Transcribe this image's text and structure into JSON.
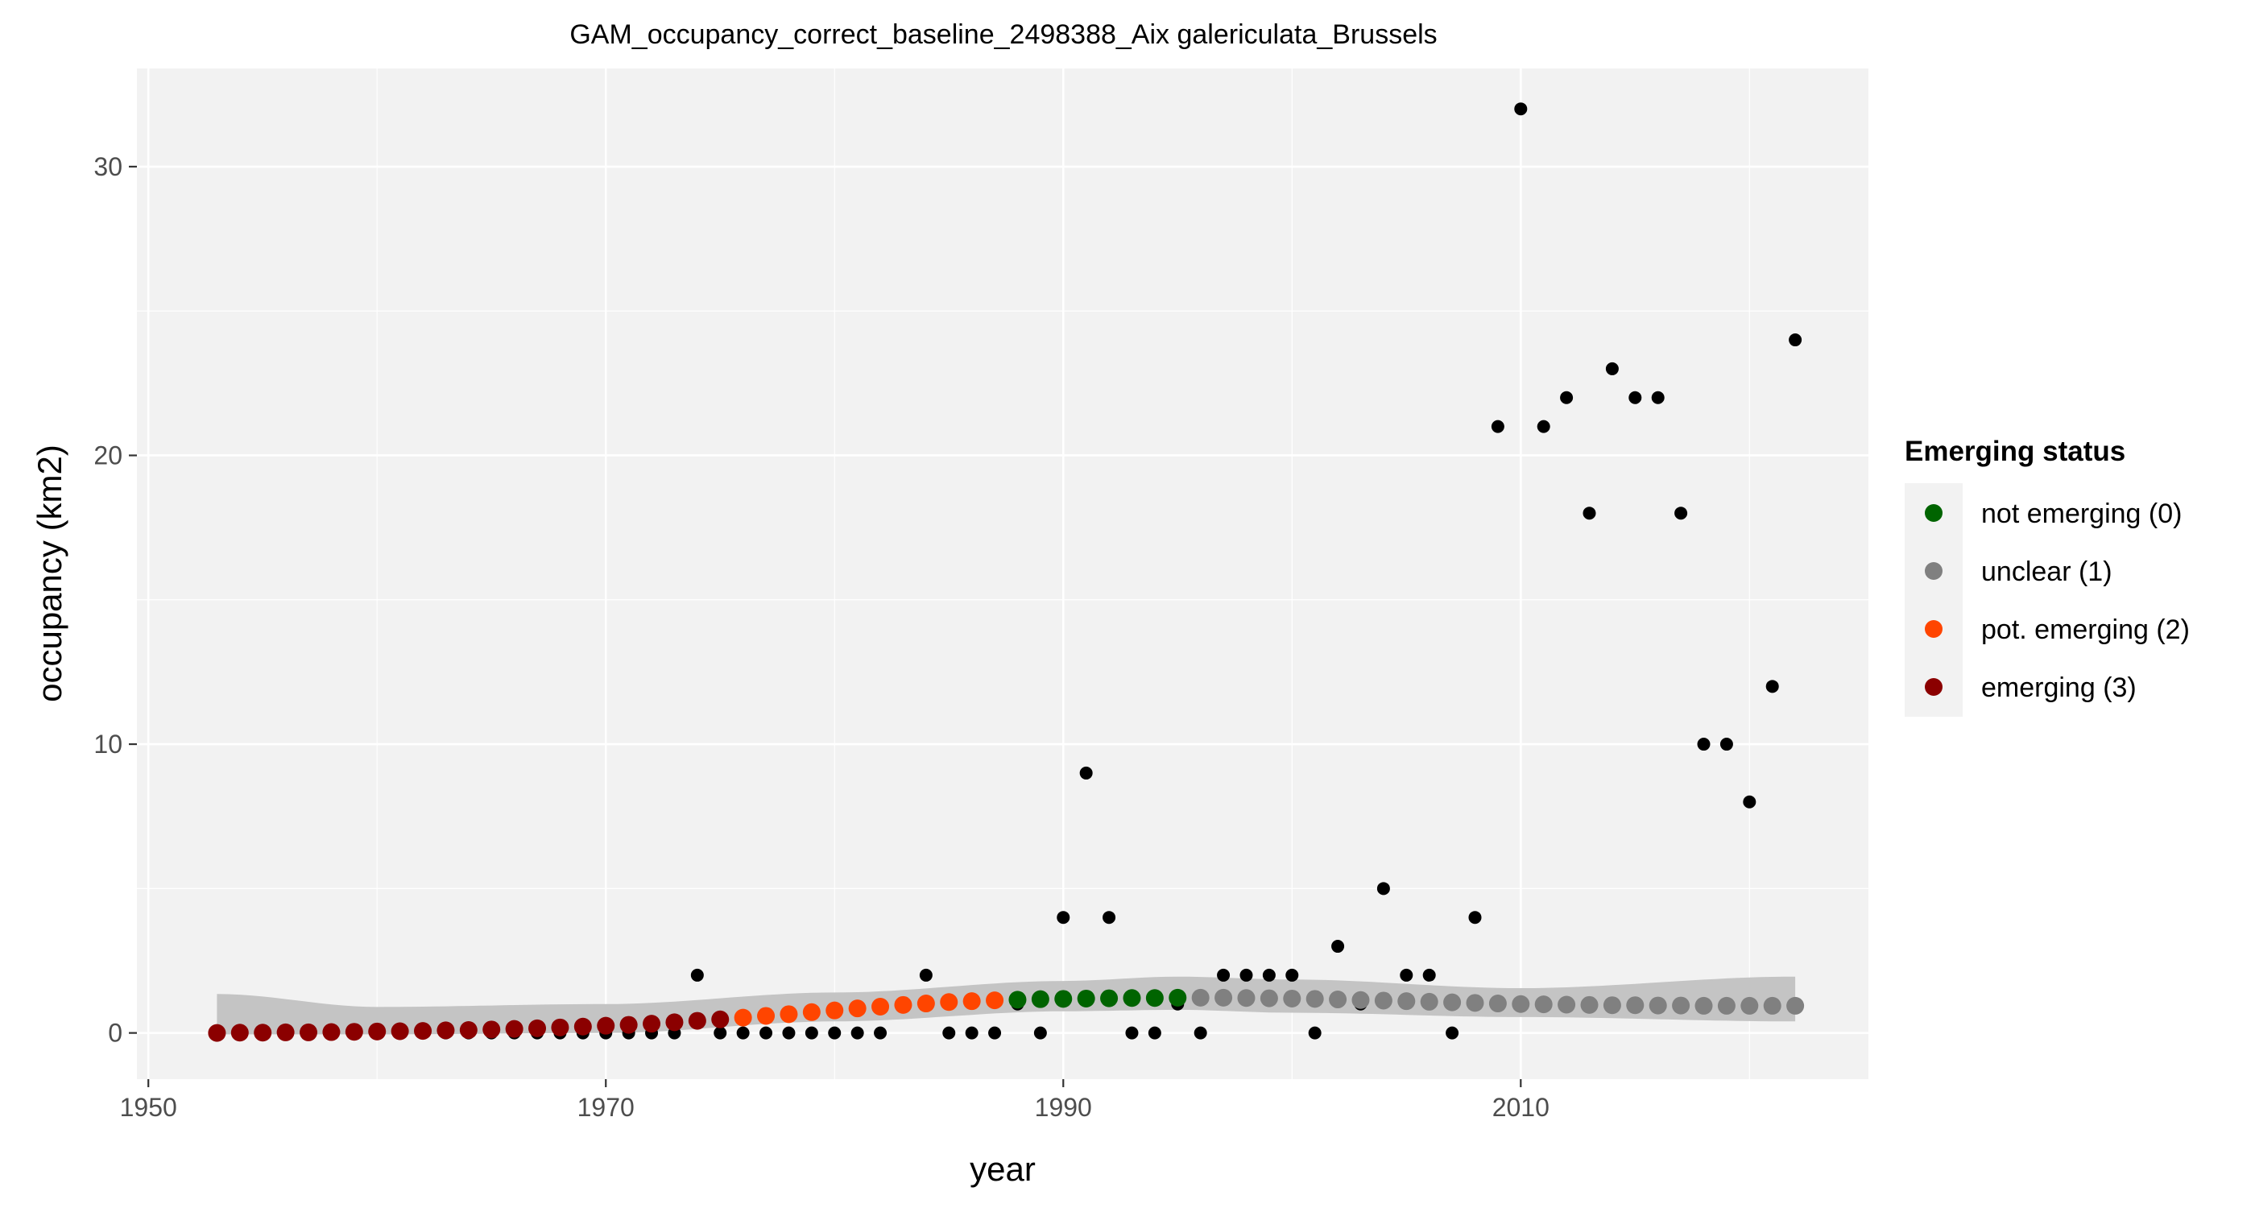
{
  "chart_data": {
    "type": "scatter",
    "title": "GAM_occupancy_correct_baseline_2498388_Aix galericulata_Brussels",
    "xlabel": "year",
    "ylabel": "occupancy (km2)",
    "xlim": [
      1949.5,
      2025.2
    ],
    "ylim": [
      -1.6,
      33.4
    ],
    "xticks": [
      1950,
      1970,
      1990,
      2010
    ],
    "yticks": [
      0,
      10,
      20,
      30
    ],
    "grid": true,
    "legend": {
      "title": "Emerging status",
      "position": "right",
      "items": [
        {
          "label": "not emerging (0)",
          "color": "#006400"
        },
        {
          "label": "unclear (1)",
          "color": "#808080"
        },
        {
          "label": "pot. emerging (2)",
          "color": "#FF4500"
        },
        {
          "label": "emerging (3)",
          "color": "#8B0000"
        }
      ]
    },
    "observed": {
      "color": "#000000",
      "x": [
        1953,
        1954,
        1955,
        1956,
        1957,
        1958,
        1959,
        1960,
        1961,
        1962,
        1963,
        1964,
        1965,
        1966,
        1967,
        1968,
        1969,
        1970,
        1971,
        1972,
        1973,
        1974,
        1975,
        1976,
        1977,
        1978,
        1979,
        1980,
        1981,
        1982,
        1983,
        1984,
        1985,
        1986,
        1987,
        1988,
        1989,
        1990,
        1991,
        1992,
        1993,
        1994,
        1995,
        1996,
        1997,
        1998,
        1999,
        2000,
        2001,
        2002,
        2003,
        2004,
        2005,
        2006,
        2007,
        2008,
        2009,
        2010,
        2011,
        2012,
        2013,
        2014,
        2015,
        2016,
        2017,
        2018,
        2019,
        2020,
        2021,
        2022
      ],
      "y": [
        0,
        0,
        0,
        0,
        0,
        0,
        0,
        0,
        0,
        0,
        0,
        0,
        0,
        0,
        0,
        0,
        0,
        0,
        0,
        0,
        0,
        2,
        0,
        0,
        0,
        0,
        0,
        0,
        0,
        0,
        1,
        2,
        0,
        0,
        0,
        1,
        0,
        4,
        9,
        4,
        0,
        0,
        1,
        0,
        2,
        2,
        2,
        2,
        0,
        3,
        1,
        5,
        2,
        2,
        0,
        4,
        21,
        32,
        21,
        22,
        18,
        23,
        22,
        22,
        18,
        10,
        10,
        8,
        12,
        24
      ]
    },
    "fitted": {
      "x": [
        1953,
        1954,
        1955,
        1956,
        1957,
        1958,
        1959,
        1960,
        1961,
        1962,
        1963,
        1964,
        1965,
        1966,
        1967,
        1968,
        1969,
        1970,
        1971,
        1972,
        1973,
        1974,
        1975,
        1976,
        1977,
        1978,
        1979,
        1980,
        1981,
        1982,
        1983,
        1984,
        1985,
        1986,
        1987,
        1988,
        1989,
        1990,
        1991,
        1992,
        1993,
        1994,
        1995,
        1996,
        1997,
        1998,
        1999,
        2000,
        2001,
        2002,
        2003,
        2004,
        2005,
        2006,
        2007,
        2008,
        2009,
        2010,
        2011,
        2012,
        2013,
        2014,
        2015,
        2016,
        2017,
        2018,
        2019,
        2020,
        2021,
        2022
      ],
      "y": [
        0.0,
        0.01,
        0.01,
        0.02,
        0.02,
        0.03,
        0.04,
        0.05,
        0.06,
        0.07,
        0.09,
        0.1,
        0.12,
        0.14,
        0.16,
        0.19,
        0.22,
        0.25,
        0.28,
        0.32,
        0.37,
        0.42,
        0.47,
        0.53,
        0.59,
        0.65,
        0.72,
        0.78,
        0.85,
        0.91,
        0.97,
        1.02,
        1.07,
        1.1,
        1.13,
        1.15,
        1.17,
        1.18,
        1.19,
        1.2,
        1.21,
        1.21,
        1.22,
        1.22,
        1.22,
        1.21,
        1.2,
        1.19,
        1.18,
        1.16,
        1.14,
        1.12,
        1.1,
        1.08,
        1.06,
        1.04,
        1.02,
        1.0,
        0.99,
        0.98,
        0.97,
        0.96,
        0.96,
        0.95,
        0.95,
        0.94,
        0.94,
        0.94,
        0.94,
        0.94
      ],
      "status": [
        3,
        3,
        3,
        3,
        3,
        3,
        3,
        3,
        3,
        3,
        3,
        3,
        3,
        3,
        3,
        3,
        3,
        3,
        3,
        3,
        3,
        3,
        3,
        2,
        2,
        2,
        2,
        2,
        2,
        2,
        2,
        2,
        2,
        2,
        2,
        0,
        0,
        0,
        0,
        0,
        0,
        0,
        0,
        1,
        1,
        1,
        1,
        1,
        1,
        1,
        1,
        1,
        1,
        1,
        1,
        1,
        1,
        1,
        1,
        1,
        1,
        1,
        1,
        1,
        1,
        1,
        1,
        1,
        1,
        1
      ]
    },
    "ribbon": {
      "x": [
        1953,
        1960,
        1970,
        1980,
        1990,
        1995,
        2000,
        2010,
        2022
      ],
      "lower": [
        -0.05,
        -0.05,
        0.0,
        0.4,
        0.75,
        0.8,
        0.7,
        0.55,
        0.4
      ],
      "upper": [
        1.35,
        0.9,
        1.0,
        1.4,
        1.8,
        1.95,
        1.85,
        1.55,
        1.95
      ]
    }
  }
}
